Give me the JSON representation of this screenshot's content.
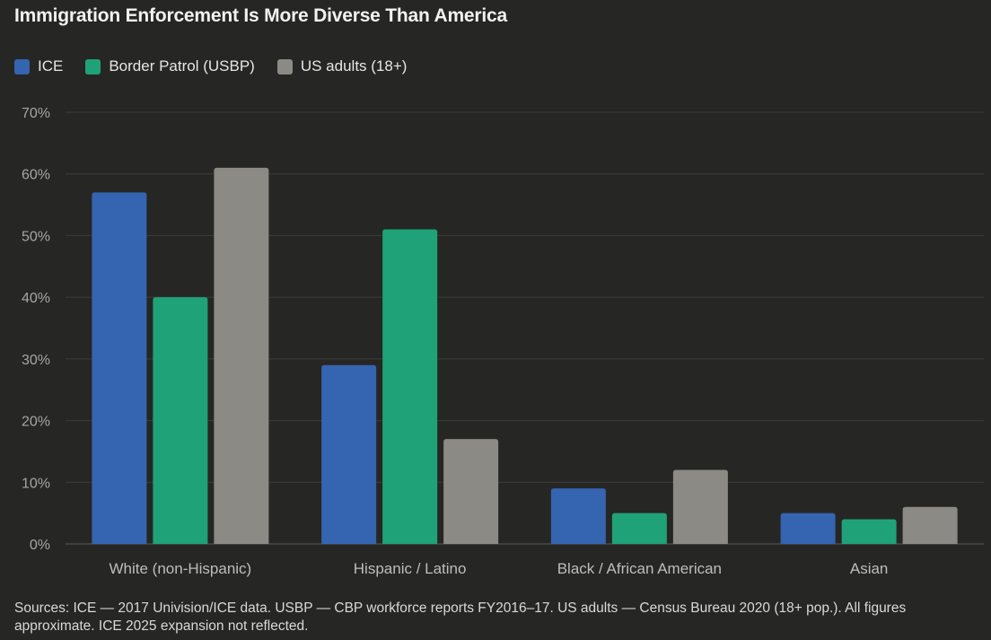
{
  "chart_data": {
    "type": "bar",
    "title": "Immigration Enforcement Is More Diverse Than America",
    "categories": [
      "White (non-Hispanic)",
      "Hispanic / Latino",
      "Black / African American",
      "Asian"
    ],
    "series": [
      {
        "name": "ICE",
        "color": "#3564b0",
        "values": [
          57,
          29,
          9,
          5
        ]
      },
      {
        "name": "Border Patrol (USBP)",
        "color": "#1fa277",
        "values": [
          40,
          51,
          5,
          4
        ]
      },
      {
        "name": "US adults (18+)",
        "color": "#8b8a84",
        "values": [
          61,
          17,
          12,
          6
        ]
      }
    ],
    "yticks": [
      "0%",
      "10%",
      "20%",
      "30%",
      "40%",
      "50%",
      "60%",
      "70%"
    ],
    "ylim": [
      0,
      70
    ],
    "xlabel": "",
    "ylabel": "",
    "grid": true,
    "legend_position": "top-left"
  },
  "footer": {
    "source": "Sources: ICE — 2017 Univision/ICE data. USBP — CBP workforce reports FY2016–17. US adults — Census Bureau 2020 (18+ pop.). All figures approximate. ICE 2025 expansion not reflected."
  }
}
